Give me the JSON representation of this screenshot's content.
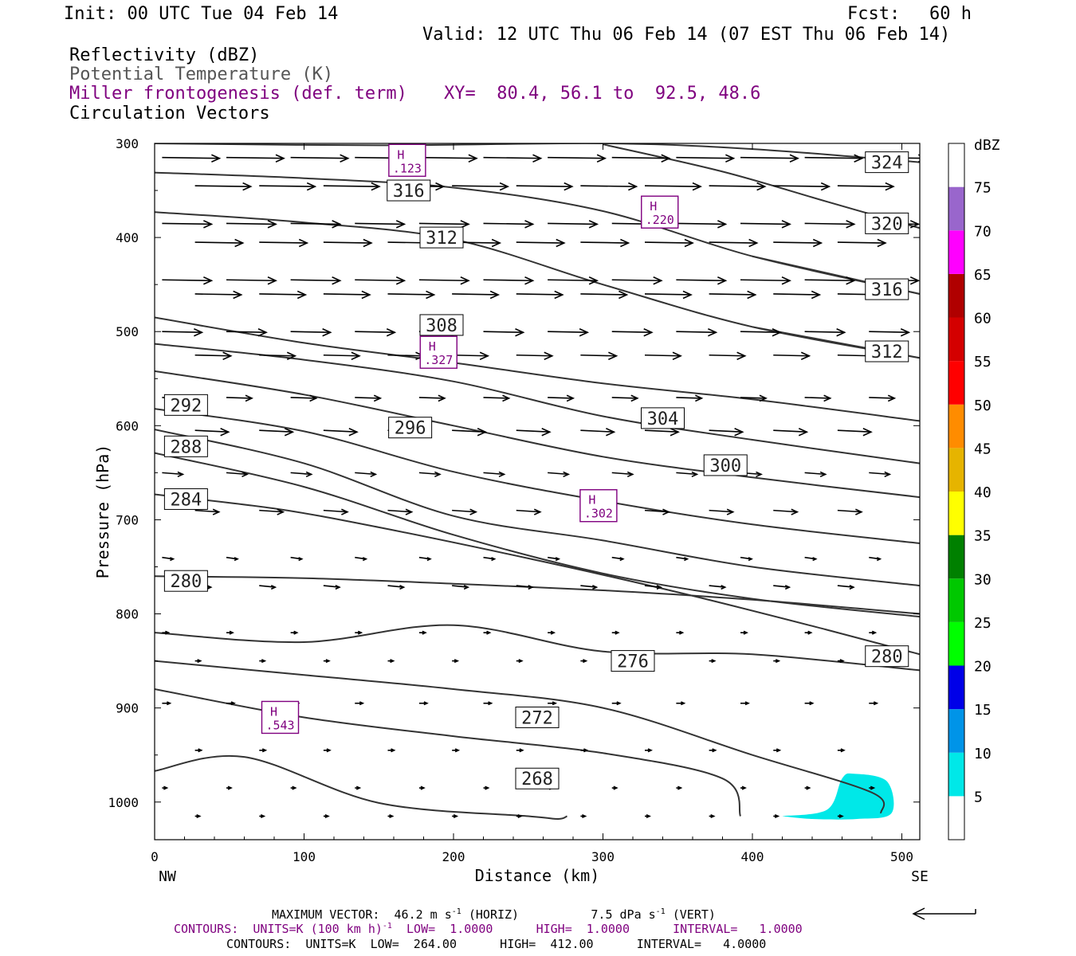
{
  "header": {
    "init": "Init: 00 UTC Tue 04 Feb 14",
    "fcst_label": "Fcst:",
    "fcst_value": "60 h",
    "valid": "Valid: 12 UTC Thu 06 Feb 14 (07 EST Thu 06 Feb 14)",
    "field1": "Reflectivity (dBZ)",
    "field2": "Potential Temperature (K)",
    "field3": "Miller frontogenesis (def. term)",
    "xy": "XY=  80.4, 56.1 to  92.5, 48.6",
    "field4": "Circulation Vectors"
  },
  "colors": {
    "theta": "#333333",
    "frontogenesis": "#7f007f",
    "reflectivity_cyan": "#00e8e8"
  },
  "chart_data": {
    "type": "cross-section",
    "xlabel": "Distance (km)",
    "ylabel": "Pressure (hPa)",
    "xlim": [
      0,
      512
    ],
    "ylim": [
      1040,
      300
    ],
    "x_ticks": [
      0,
      100,
      200,
      300,
      400,
      500
    ],
    "y_ticks": [
      300,
      400,
      500,
      600,
      700,
      800,
      900,
      1000
    ],
    "left_end_label": "NW",
    "right_end_label": "SE",
    "theta_contours": [
      {
        "label": "324",
        "lx": 490,
        "lp": 320,
        "points": [
          [
            0,
            300
          ],
          [
            150,
            302
          ],
          [
            300,
            300
          ],
          [
            400,
            306
          ],
          [
            512,
            320
          ]
        ]
      },
      {
        "label": "320",
        "lx": 490,
        "lp": 385,
        "points": [
          [
            300,
            301
          ],
          [
            380,
            330
          ],
          [
            450,
            362
          ],
          [
            512,
            390
          ]
        ]
      },
      {
        "label": "316",
        "lx": 170,
        "lp": 350,
        "points": [
          [
            0,
            331
          ],
          [
            100,
            337
          ],
          [
            200,
            347
          ],
          [
            300,
            372
          ],
          [
            400,
            420
          ],
          [
            512,
            460
          ]
        ]
      },
      {
        "label": "316",
        "lx": 490,
        "lp": 455,
        "points": [
          [
            400,
            420
          ],
          [
            512,
            460
          ]
        ]
      },
      {
        "label": "312",
        "lx": 192,
        "lp": 400,
        "points": [
          [
            0,
            373
          ],
          [
            100,
            384
          ],
          [
            200,
            402
          ],
          [
            300,
            450
          ],
          [
            400,
            495
          ],
          [
            512,
            528
          ]
        ]
      },
      {
        "label": "312",
        "lx": 490,
        "lp": 521,
        "points": [
          [
            400,
            495
          ],
          [
            512,
            528
          ]
        ]
      },
      {
        "label": "308",
        "lx": 192,
        "lp": 493,
        "points": [
          [
            0,
            485
          ],
          [
            100,
            512
          ],
          [
            200,
            533
          ],
          [
            300,
            555
          ],
          [
            400,
            572
          ],
          [
            512,
            595
          ]
        ]
      },
      {
        "label": "304",
        "lx": 340,
        "lp": 592,
        "points": [
          [
            0,
            513
          ],
          [
            100,
            530
          ],
          [
            200,
            553
          ],
          [
            300,
            590
          ],
          [
            400,
            615
          ],
          [
            512,
            640
          ]
        ]
      },
      {
        "label": "300",
        "lx": 382,
        "lp": 642,
        "points": [
          [
            0,
            542
          ],
          [
            100,
            567
          ],
          [
            200,
            600
          ],
          [
            300,
            633
          ],
          [
            400,
            655
          ],
          [
            512,
            676
          ]
        ]
      },
      {
        "label": "296",
        "lx": 171,
        "lp": 602,
        "points": [
          [
            0,
            582
          ],
          [
            100,
            606
          ],
          [
            200,
            649
          ],
          [
            300,
            680
          ],
          [
            400,
            705
          ],
          [
            512,
            725
          ]
        ]
      },
      {
        "label": "292",
        "lx": 21,
        "lp": 578,
        "points": [
          [
            0,
            604
          ],
          [
            100,
            640
          ],
          [
            200,
            696
          ],
          [
            300,
            722
          ],
          [
            400,
            750
          ],
          [
            512,
            770
          ]
        ]
      },
      {
        "label": "288",
        "lx": 21,
        "lp": 622,
        "points": [
          [
            0,
            629
          ],
          [
            100,
            665
          ],
          [
            200,
            716
          ],
          [
            300,
            757
          ],
          [
            400,
            784
          ],
          [
            512,
            803
          ]
        ]
      },
      {
        "label": "284",
        "lx": 21,
        "lp": 678,
        "points": [
          [
            0,
            673
          ],
          [
            80,
            688
          ],
          [
            150,
            708
          ],
          [
            250,
            741
          ],
          [
            350,
            777
          ],
          [
            450,
            817
          ],
          [
            512,
            843
          ]
        ]
      },
      {
        "label": "280",
        "lx": 21,
        "lp": 765,
        "points": [
          [
            0,
            760
          ],
          [
            100,
            762
          ],
          [
            200,
            768
          ],
          [
            300,
            775
          ],
          [
            400,
            785
          ],
          [
            512,
            800
          ]
        ]
      },
      {
        "label": "280",
        "lx": 490,
        "lp": 845,
        "points": [
          [
            0,
            820
          ],
          [
            100,
            830
          ],
          [
            200,
            812
          ],
          [
            300,
            840
          ],
          [
            400,
            843
          ],
          [
            512,
            860
          ]
        ]
      },
      {
        "label": "276",
        "lx": 320,
        "lp": 850,
        "points": [
          [
            0,
            850
          ],
          [
            100,
            865
          ],
          [
            200,
            880
          ],
          [
            300,
            900
          ],
          [
            400,
            950
          ],
          [
            480,
            990
          ],
          [
            486,
            1012
          ]
        ]
      },
      {
        "label": "272",
        "lx": 256,
        "lp": 910,
        "points": [
          [
            0,
            880
          ],
          [
            100,
            910
          ],
          [
            200,
            930
          ],
          [
            300,
            948
          ],
          [
            380,
            975
          ],
          [
            392,
            1015
          ]
        ]
      },
      {
        "label": "268",
        "lx": 256,
        "lp": 975,
        "points": [
          [
            0,
            967
          ],
          [
            60,
            952
          ],
          [
            150,
            1001
          ],
          [
            250,
            1015
          ],
          [
            270,
            1018
          ],
          [
            276,
            1015
          ]
        ]
      }
    ],
    "frontogenesis_maxima": [
      {
        "marker": "H",
        "value": ".123",
        "x": 169,
        "p": 318
      },
      {
        "marker": "H",
        "value": ".220",
        "x": 338,
        "p": 373
      },
      {
        "marker": "H",
        "value": ".327",
        "x": 190,
        "p": 522
      },
      {
        "marker": "H",
        "value": ".302",
        "x": 297,
        "p": 685
      },
      {
        "marker": "H",
        "value": ".543",
        "x": 84,
        "p": 910
      }
    ],
    "reflectivity_areas": [
      {
        "dbz": 5,
        "points": [
          [
            420,
            1015
          ],
          [
            450,
            1008
          ],
          [
            460,
            975
          ],
          [
            468,
            970
          ],
          [
            490,
            978
          ],
          [
            493,
            1012
          ],
          [
            470,
            1018
          ],
          [
            440,
            1018
          ]
        ]
      }
    ],
    "colorbar": {
      "label": "dBZ",
      "levels": [
        5,
        10,
        15,
        20,
        25,
        30,
        35,
        40,
        45,
        50,
        55,
        60,
        65,
        70,
        75
      ],
      "colors": [
        "#ffffff",
        "#00e8e8",
        "#0094e8",
        "#0000e8",
        "#00ff00",
        "#00c800",
        "#008000",
        "#ffff00",
        "#e6b400",
        "#ff8c00",
        "#ff0000",
        "#d40000",
        "#b00000",
        "#ff00ff",
        "#9966cc",
        "#ffffff"
      ]
    },
    "vectors_note": "Circulation vectors (mostly left-to-right along-section flow, weakening with height toward surface)"
  },
  "footer": {
    "max_vector_prefix": "MAXIMUM VECTOR:  46.2 m s",
    "max_vector_exp": "-1",
    "max_vector_mid": " (HORIZ)          7.5 dPa s",
    "max_vector_exp2": "-1",
    "max_vector_suffix": " (VERT)",
    "contours1_prefix": "CONTOURS:  UNITS=K (100 km h)",
    "contours1_exp": "-1",
    "contours1_suffix": "  LOW=  1.0000      HIGH=  1.0000      INTERVAL=   1.0000",
    "contours2": "CONTOURS:  UNITS=K  LOW=  264.00      HIGH=  412.00      INTERVAL=   4.0000"
  }
}
